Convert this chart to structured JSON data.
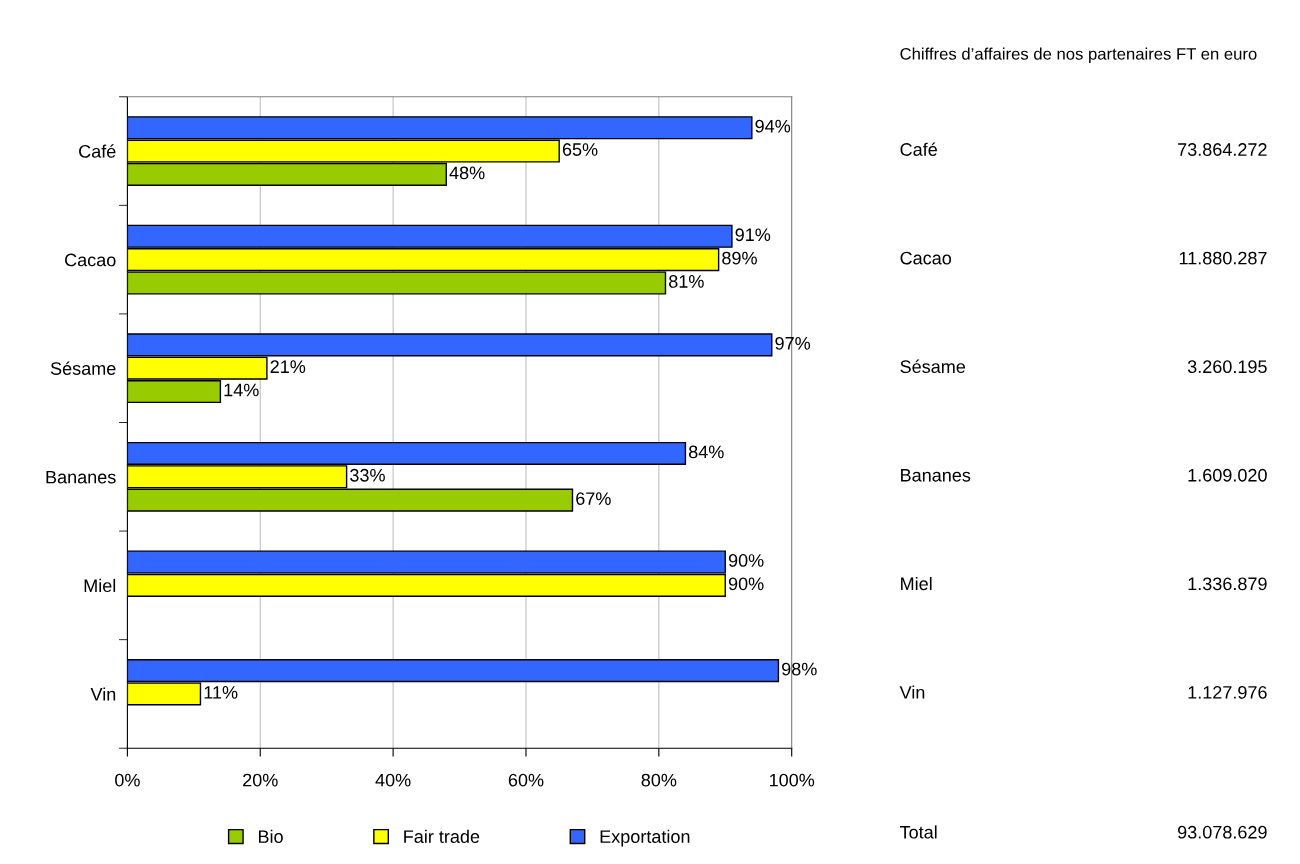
{
  "chart_data": [
    {
      "type": "bar",
      "orientation": "horizontal",
      "categories": [
        "Café",
        "Cacao",
        "Sésame",
        "Bananes",
        "Miel",
        "Vin"
      ],
      "series": [
        {
          "name": "Bio",
          "color": "#99cc00",
          "values": [
            48,
            81,
            14,
            67,
            null,
            null
          ]
        },
        {
          "name": "Fair trade",
          "color": "#ffff00",
          "values": [
            65,
            89,
            21,
            33,
            90,
            11
          ]
        },
        {
          "name": "Exportation",
          "color": "#3366ff",
          "values": [
            94,
            91,
            97,
            84,
            90,
            98
          ]
        }
      ],
      "xlim": [
        0,
        100
      ],
      "xticks": [
        {
          "value": 0,
          "label": "0%"
        },
        {
          "value": 20,
          "label": "20%"
        },
        {
          "value": 40,
          "label": "40%"
        },
        {
          "value": 60,
          "label": "60%"
        },
        {
          "value": 80,
          "label": "80%"
        },
        {
          "value": 100,
          "label": "100%"
        }
      ],
      "value_labels": [
        [
          "48%",
          "81%",
          "14%",
          "67%",
          null,
          null
        ],
        [
          "65%",
          "89%",
          "21%",
          "33%",
          "90%",
          "11%"
        ],
        [
          "94%",
          "91%",
          "97%",
          "84%",
          "90%",
          "98%"
        ]
      ],
      "grid": "x",
      "legend": "bottom"
    },
    {
      "type": "other",
      "title": "Chiffres d’affaires de nos partenaires FT en euro",
      "categories": [
        "Café",
        "Cacao",
        "Sésame",
        "Bananes",
        "Miel",
        "Vin",
        "Total"
      ],
      "value_labels": [
        "73.864.272",
        "11.880.287",
        "3.260.195",
        "1.609.020",
        "1.336.879",
        "1.127.976",
        "93.078.629"
      ]
    }
  ]
}
